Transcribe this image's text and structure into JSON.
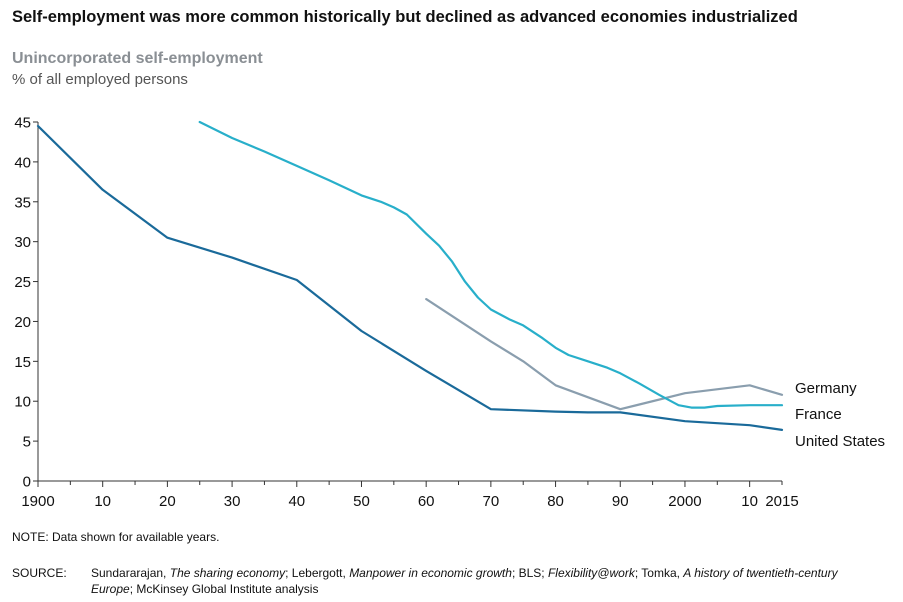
{
  "title": "Self-employment was more common historically but declined as advanced economies industrialized",
  "subtitle": "Unincorporated self-employment",
  "units": "% of all employed persons",
  "note": "NOTE: Data shown for available years.",
  "source": {
    "lead": "SOURCE:",
    "parts": [
      {
        "text": "Sundararajan, ",
        "italic": false
      },
      {
        "text": "The sharing economy",
        "italic": true
      },
      {
        "text": "; Lebergott, ",
        "italic": false
      },
      {
        "text": "Manpower in economic growth",
        "italic": true
      },
      {
        "text": "; BLS; ",
        "italic": false
      },
      {
        "text": "Flexibility@work",
        "italic": true
      },
      {
        "text": "; Tomka, ",
        "italic": false
      },
      {
        "text": "A history of twentieth-century",
        "italic": true
      }
    ],
    "line2": [
      {
        "text": "Europe",
        "italic": true
      },
      {
        "text": "; McKinsey Global Institute analysis",
        "italic": false
      }
    ]
  },
  "chart_data": {
    "type": "line",
    "xlim": [
      1900,
      2015
    ],
    "ylim": [
      0,
      45
    ],
    "yticks": [
      0,
      5,
      10,
      15,
      20,
      25,
      30,
      35,
      40,
      45
    ],
    "xticks": [
      {
        "value": 1900,
        "label": "1900"
      },
      {
        "value": 1910,
        "label": "10"
      },
      {
        "value": 1920,
        "label": "20"
      },
      {
        "value": 1930,
        "label": "30"
      },
      {
        "value": 1940,
        "label": "40"
      },
      {
        "value": 1950,
        "label": "50"
      },
      {
        "value": 1960,
        "label": "60"
      },
      {
        "value": 1970,
        "label": "70"
      },
      {
        "value": 1980,
        "label": "80"
      },
      {
        "value": 1990,
        "label": "90"
      },
      {
        "value": 2000,
        "label": "2000"
      },
      {
        "value": 2010,
        "label": "10"
      },
      {
        "value": 2015,
        "label": "2015"
      }
    ],
    "series": [
      {
        "name": "Germany",
        "color": "#8a9eae",
        "points": [
          [
            1960,
            22.8
          ],
          [
            1970,
            17.5
          ],
          [
            1975,
            15.0
          ],
          [
            1980,
            12.0
          ],
          [
            1990,
            9.0
          ],
          [
            2000,
            11.0
          ],
          [
            2010,
            12.0
          ],
          [
            2015,
            10.8
          ]
        ]
      },
      {
        "name": "France",
        "color": "#28afca",
        "points": [
          [
            1925,
            45.0
          ],
          [
            1930,
            43.0
          ],
          [
            1935,
            41.3
          ],
          [
            1940,
            39.5
          ],
          [
            1945,
            37.7
          ],
          [
            1950,
            35.8
          ],
          [
            1953,
            35.0
          ],
          [
            1955,
            34.3
          ],
          [
            1957,
            33.4
          ],
          [
            1960,
            31.0
          ],
          [
            1962,
            29.5
          ],
          [
            1964,
            27.5
          ],
          [
            1966,
            25.0
          ],
          [
            1968,
            23.0
          ],
          [
            1970,
            21.5
          ],
          [
            1973,
            20.2
          ],
          [
            1975,
            19.5
          ],
          [
            1978,
            17.9
          ],
          [
            1980,
            16.7
          ],
          [
            1982,
            15.8
          ],
          [
            1985,
            15.0
          ],
          [
            1988,
            14.2
          ],
          [
            1990,
            13.5
          ],
          [
            1993,
            12.2
          ],
          [
            1996,
            10.8
          ],
          [
            1999,
            9.5
          ],
          [
            2001,
            9.2
          ],
          [
            2003,
            9.2
          ],
          [
            2005,
            9.4
          ],
          [
            2010,
            9.5
          ],
          [
            2015,
            9.5
          ]
        ]
      },
      {
        "name": "United States",
        "color": "#1a6a9a",
        "points": [
          [
            1900,
            44.5
          ],
          [
            1910,
            36.5
          ],
          [
            1920,
            30.5
          ],
          [
            1930,
            28.0
          ],
          [
            1940,
            25.2
          ],
          [
            1950,
            18.8
          ],
          [
            1960,
            13.8
          ],
          [
            1970,
            9.0
          ],
          [
            1980,
            8.7
          ],
          [
            1985,
            8.6
          ],
          [
            1990,
            8.6
          ],
          [
            2000,
            7.5
          ],
          [
            2010,
            7.0
          ],
          [
            2015,
            6.4
          ]
        ]
      }
    ]
  }
}
